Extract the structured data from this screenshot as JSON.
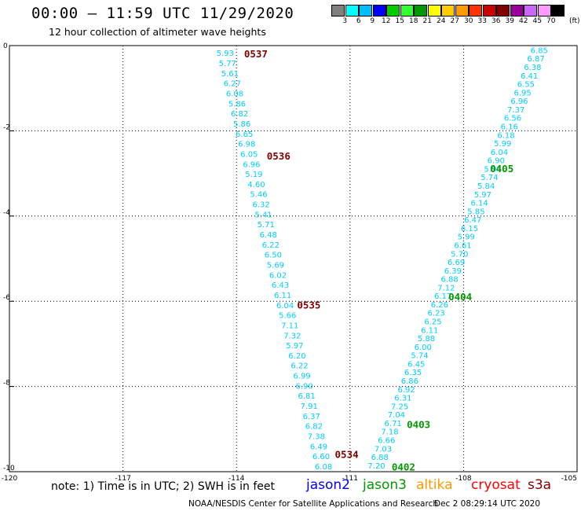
{
  "header": {
    "title": "00:00 – 11:59 UTC 11/29/2020",
    "subtitle": "12 hour collection of altimeter wave heights"
  },
  "colorbar": {
    "colors": [
      "#808080",
      "#00ffff",
      "#00bfff",
      "#0000ff",
      "#00cc00",
      "#33ff33",
      "#009900",
      "#ffff00",
      "#ffcc00",
      "#ff9900",
      "#ff3300",
      "#cc0000",
      "#800000",
      "#990099",
      "#cc66ff",
      "#ff99ff",
      "#000000"
    ],
    "labels": [
      "3",
      "6",
      "9",
      "12",
      "15",
      "18",
      "21",
      "24",
      "27",
      "30",
      "33",
      "36",
      "39",
      "42",
      "45",
      "70"
    ],
    "units": "(ft)"
  },
  "chart_data": {
    "type": "scatter",
    "xlim": [
      -120,
      -105
    ],
    "ylim": [
      -10,
      0
    ],
    "x_ticks": [
      "-120",
      "-117",
      "-114",
      "-111",
      "-108",
      "-105"
    ],
    "y_ticks": [
      "0",
      "-2",
      "-4",
      "-6",
      "-8",
      "-10"
    ],
    "grid": true,
    "tracks": [
      {
        "mission": "jason2",
        "color": "#00ccff",
        "start": [
          -114.3,
          -0.17
        ],
        "end": [
          -111.7,
          -9.87
        ],
        "values": [
          "5.93",
          "5.77",
          "5.61",
          "6.27",
          "6.08",
          "5.86",
          "6.82",
          "5.86",
          "6.65",
          "6.98",
          "6.05",
          "6.96",
          "5.19",
          "4.60",
          "5.46",
          "6.32",
          "5.41",
          "5.71",
          "6.48",
          "6.22",
          "6.50",
          "5.69",
          "6.02",
          "6.43",
          "6.11",
          "6.04",
          "5.66",
          "7.11",
          "7.32",
          "5.97",
          "6.20",
          "6.22",
          "6.99",
          "6.90",
          "6.81",
          "7.91",
          "6.37",
          "6.82",
          "7.38",
          "6.49",
          "6.60",
          "6.08"
        ],
        "labels": [
          {
            "text": "0537",
            "x": -113.8,
            "y": -0.2
          },
          {
            "text": "0536",
            "x": -113.2,
            "y": -2.6
          },
          {
            "text": "0535",
            "x": -112.4,
            "y": -6.1
          },
          {
            "text": "0534",
            "x": -111.4,
            "y": -9.6
          }
        ]
      },
      {
        "mission": "jason3",
        "color": "#00ccff",
        "start": [
          -106.0,
          -0.1
        ],
        "end": [
          -110.3,
          -9.85
        ],
        "values": [
          "6.85",
          "6.87",
          "6.38",
          "6.41",
          "6.55",
          "6.95",
          "6.96",
          "7.37",
          "6.56",
          "6.16",
          "6.18",
          "5.99",
          "6.04",
          "6.90",
          "5.95",
          "5.74",
          "5.84",
          "5.97",
          "6.14",
          "5.85",
          "6.47",
          "6.15",
          "5.99",
          "6.61",
          "5.70",
          "6.69",
          "6.39",
          "6.88",
          "7.12",
          "6.17",
          "6.26",
          "6.23",
          "6.25",
          "6.11",
          "5.88",
          "6.00",
          "5.74",
          "6.45",
          "6.35",
          "6.86",
          "6.92",
          "6.31",
          "7.25",
          "7.04",
          "6.71",
          "7.18",
          "6.66",
          "7.03",
          "6.88",
          "7.20"
        ],
        "labels": [
          {
            "text": "0405",
            "x": -107.3,
            "y": -2.9
          },
          {
            "text": "0404",
            "x": -108.4,
            "y": -5.9
          },
          {
            "text": "0403",
            "x": -109.5,
            "y": -8.9
          },
          {
            "text": "0402",
            "x": -109.9,
            "y": -9.9
          }
        ]
      }
    ]
  },
  "footer": {
    "note": "note: 1) Time is in UTC; 2) SWH is in feet",
    "missions": [
      {
        "name": "jason2",
        "color": "#0000ff"
      },
      {
        "name": "jason3",
        "color": "#009900"
      },
      {
        "name": "altika",
        "color": "#ff9900"
      },
      {
        "name": "cryosat",
        "color": "#ff0000"
      },
      {
        "name": "s3a",
        "color": "#800000"
      }
    ],
    "credit": "NOAA/NESDIS Center for Satellite Applications and Research",
    "timestamp": "Dec  2 08:29:14 UTC 2020"
  }
}
